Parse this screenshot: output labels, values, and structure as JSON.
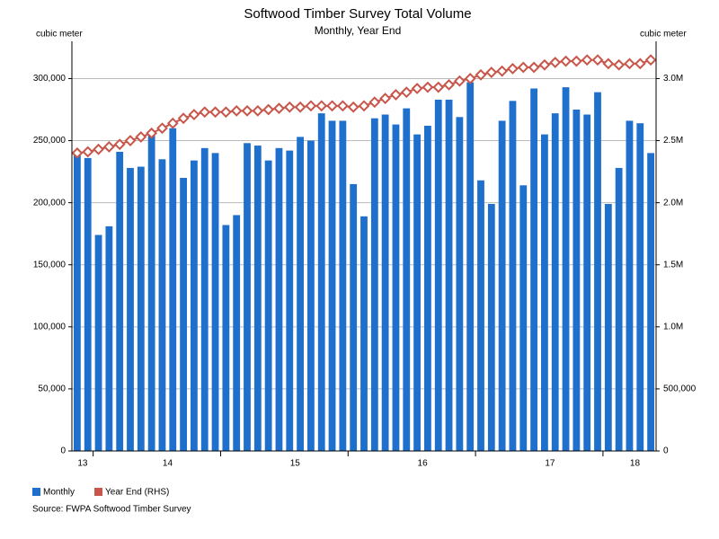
{
  "chart_data": {
    "type": "bar_line",
    "title": "Softwood Timber Survey Total Volume",
    "subtitle": "Monthly, Year End",
    "y_label": "cubic meter",
    "y2_label": "cubic meter",
    "source": "Source: FWPA Softwood Timber Survey",
    "categories": [
      "13",
      null,
      null,
      null,
      null,
      null,
      null,
      null,
      "14",
      null,
      null,
      null,
      null,
      null,
      null,
      null,
      null,
      null,
      null,
      null,
      "15",
      null,
      null,
      null,
      null,
      null,
      null,
      null,
      null,
      null,
      null,
      null,
      "16",
      null,
      null,
      null,
      null,
      null,
      null,
      null,
      null,
      null,
      null,
      null,
      "17",
      null,
      null,
      null,
      null,
      null,
      null,
      null,
      "18",
      null,
      null
    ],
    "series": [
      {
        "name": "Monthly",
        "type": "bar",
        "color": "#1f6fcc",
        "values": [
          238000,
          236000,
          174000,
          181000,
          241000,
          228000,
          229000,
          254000,
          235000,
          260000,
          220000,
          234000,
          244000,
          240000,
          182000,
          190000,
          248000,
          246000,
          234000,
          244000,
          242000,
          253000,
          250000,
          272000,
          266000,
          266000,
          215000,
          189000,
          268000,
          271000,
          263000,
          276000,
          255000,
          262000,
          283000,
          283000,
          269000,
          297000,
          218000,
          199000,
          266000,
          282000,
          214000,
          292000,
          255000,
          272000,
          293000,
          275000,
          271000,
          289000,
          199000,
          228000,
          266000,
          264000,
          240000
        ]
      },
      {
        "name": "Year End (RHS)",
        "type": "line",
        "axis": "y2",
        "color": "#c8564a",
        "values": [
          2400000,
          2410000,
          2430000,
          2450000,
          2470000,
          2500000,
          2530000,
          2560000,
          2600000,
          2640000,
          2680000,
          2710000,
          2730000,
          2730000,
          2730000,
          2740000,
          2740000,
          2740000,
          2750000,
          2760000,
          2770000,
          2770000,
          2780000,
          2780000,
          2780000,
          2780000,
          2770000,
          2780000,
          2810000,
          2840000,
          2870000,
          2890000,
          2920000,
          2930000,
          2930000,
          2950000,
          2980000,
          3000000,
          3030000,
          3050000,
          3060000,
          3080000,
          3090000,
          3090000,
          3110000,
          3130000,
          3140000,
          3140000,
          3150000,
          3150000,
          3120000,
          3110000,
          3120000,
          3120000,
          3150000
        ]
      }
    ],
    "ylim": [
      0,
      330000
    ],
    "yticks": [
      0,
      {
        "value": 50000,
        "label": "50,000"
      },
      {
        "value": 100000,
        "label": "100,000"
      },
      {
        "value": 150000,
        "label": "150,000"
      },
      {
        "value": 200000,
        "label": "200,000"
      },
      {
        "value": 250000,
        "label": "250,000"
      },
      {
        "value": 300000,
        "label": "300,000"
      }
    ],
    "y2lim": [
      0,
      3300000
    ],
    "y2ticks": [
      0,
      {
        "value": 500000,
        "label": "500,000"
      },
      {
        "value": 1000000,
        "label": "1.0M"
      },
      {
        "value": 1500000,
        "label": "1.5M"
      },
      {
        "value": 2000000,
        "label": "2.0M"
      },
      {
        "value": 2500000,
        "label": "2.5M"
      },
      {
        "value": 3000000,
        "label": "3.0M"
      }
    ],
    "grid": true,
    "legend": "bottom-left"
  }
}
